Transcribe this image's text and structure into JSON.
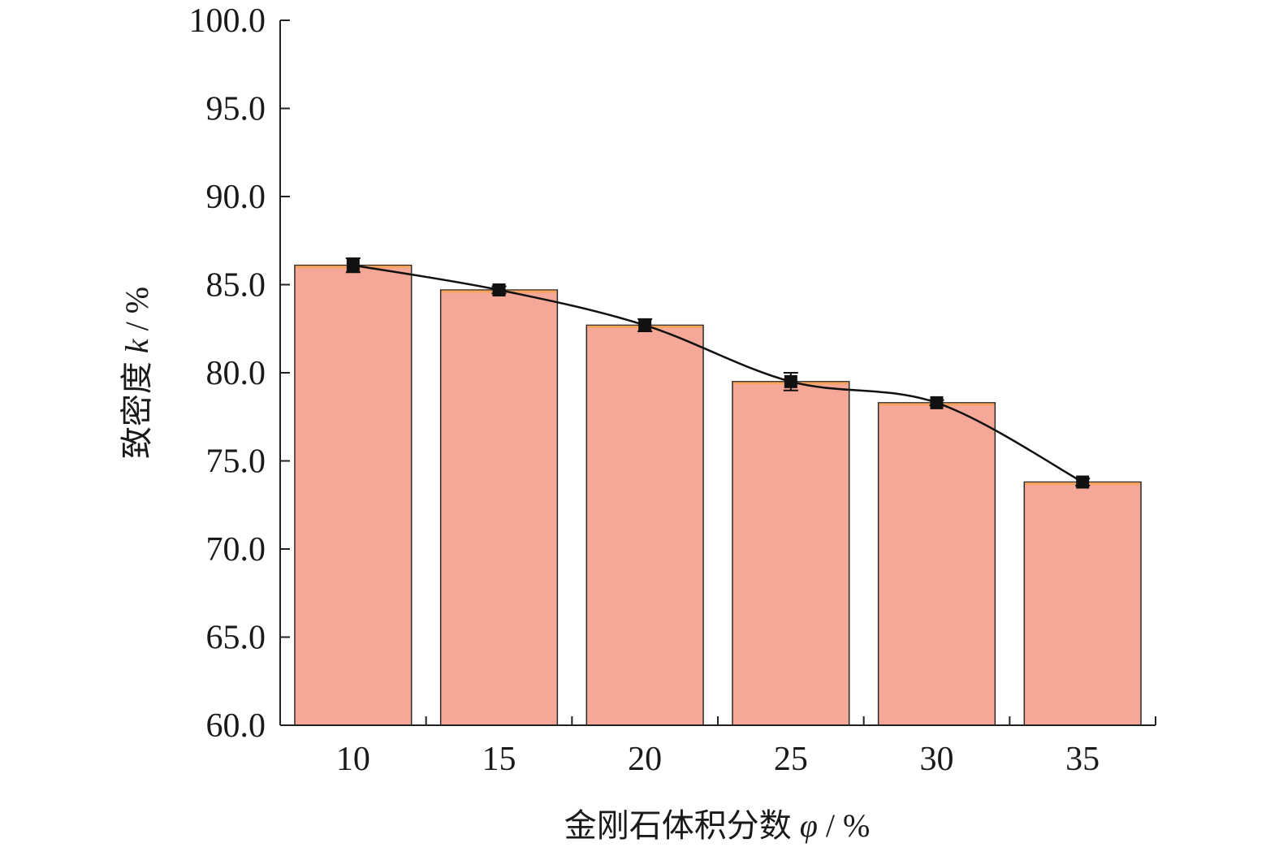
{
  "chart_data": {
    "type": "bar",
    "title": "",
    "xlabel_prefix": "金刚石体积分数 ",
    "xlabel_symbol": "φ",
    "xlabel_suffix": " / %",
    "ylabel_prefix": "致密度 ",
    "ylabel_symbol": "k",
    "ylabel_suffix": " / %",
    "categories": [
      "10",
      "15",
      "20",
      "25",
      "30",
      "35"
    ],
    "series": [
      {
        "values": [
          86.1,
          84.7,
          82.7,
          79.5,
          78.3,
          73.8
        ],
        "errors": [
          0.4,
          0.2,
          0.35,
          0.5,
          0.15,
          0.2
        ]
      }
    ],
    "ylim": [
      60.0,
      100.0
    ],
    "yticks": [
      "60.0",
      "65.0",
      "70.0",
      "75.0",
      "80.0",
      "85.0",
      "90.0",
      "95.0",
      "100.0"
    ],
    "grid": false,
    "legend": "none",
    "colors": {
      "bar_fill": "#f5a898",
      "bar_top": "#f7a35c",
      "bar_stroke": "#2a2a2a",
      "line": "#111111",
      "marker": "#111111",
      "axis": "#222222"
    }
  }
}
